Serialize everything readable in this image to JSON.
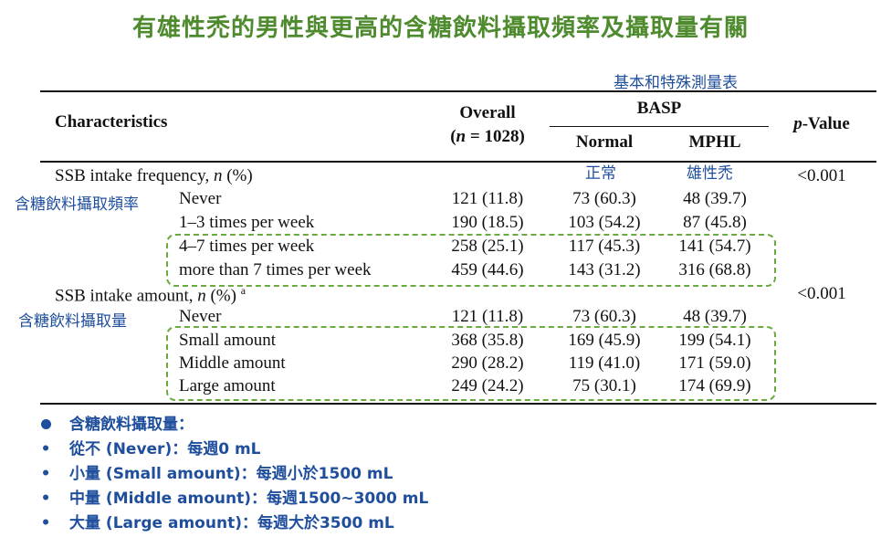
{
  "title": "有雄性禿的男性與更高的含糖飲料攝取頻率及攝取量有關",
  "table_caption": "基本和特殊測量表",
  "header": {
    "characteristics": "Characteristics",
    "overall": "Overall",
    "overall_n": "(n = 1028)",
    "basp": "BASP",
    "normal": "Normal",
    "mphl": "MPHL",
    "pvalue": "p-Value",
    "normal_zh": "正常",
    "mphl_zh": "雄性禿"
  },
  "sections": [
    {
      "label": "SSB intake frequency, n (%)",
      "label_zh": "含糖飲料攝取頻率",
      "pvalue": "<0.001",
      "rows": [
        {
          "label": "Never",
          "overall": "121 (11.8)",
          "normal": "73 (60.3)",
          "mphl": "48 (39.7)"
        },
        {
          "label": "1–3 times per week",
          "overall": "190 (18.5)",
          "normal": "103 (54.2)",
          "mphl": "87 (45.8)"
        },
        {
          "label": "4–7 times per week",
          "overall": "258 (25.1)",
          "normal": "117 (45.3)",
          "mphl": "141 (54.7)"
        },
        {
          "label": "more than 7 times per week",
          "overall": "459 (44.6)",
          "normal": "143 (31.2)",
          "mphl": "316 (68.8)"
        }
      ]
    },
    {
      "label": "SSB intake amount, n (%) a",
      "label_zh": "含糖飲料攝取量",
      "pvalue": "<0.001",
      "rows": [
        {
          "label": "Never",
          "overall": "121 (11.8)",
          "normal": "73 (60.3)",
          "mphl": "48 (39.7)"
        },
        {
          "label": "Small amount",
          "overall": "368 (35.8)",
          "normal": "169 (45.9)",
          "mphl": "199 (54.1)"
        },
        {
          "label": "Middle amount",
          "overall": "290 (28.2)",
          "normal": "119 (41.0)",
          "mphl": "171 (59.0)"
        },
        {
          "label": "Large amount",
          "overall": "249 (24.2)",
          "normal": "75 (30.1)",
          "mphl": "174 (69.9)"
        }
      ]
    }
  ],
  "bullets": [
    "含糖飲料攝取量：",
    "從不 (Never)：每週0 mL",
    "小量 (Small amount)：每週小於1500 mL",
    "中量 (Middle amount)：每週1500~3000 mL",
    "大量 (Large amount)：每週大於3500 mL"
  ],
  "colors": {
    "title_green": "#4e8a2e",
    "label_blue": "#1f4e9c",
    "dash_green": "#6aaa3f"
  }
}
